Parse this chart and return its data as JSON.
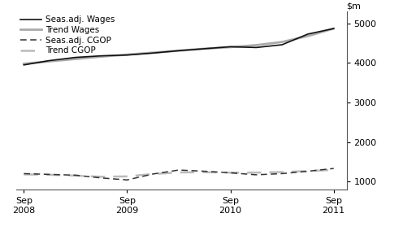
{
  "ylim": [
    800,
    5300
  ],
  "yticks": [
    1000,
    2000,
    3000,
    4000,
    5000
  ],
  "x_labels": [
    "Sep\n2008",
    "Sep\n2009",
    "Sep\n2010",
    "Sep\n2011"
  ],
  "x_positions": [
    0,
    4,
    8,
    12
  ],
  "seas_wages_x": [
    0,
    1,
    2,
    3,
    4,
    5,
    6,
    7,
    8,
    9,
    10,
    11,
    12
  ],
  "seas_wages_y": [
    3950,
    4060,
    4140,
    4180,
    4200,
    4250,
    4310,
    4360,
    4410,
    4390,
    4460,
    4730,
    4870
  ],
  "trend_wages_x": [
    0,
    1,
    2,
    3,
    4,
    5,
    6,
    7,
    8,
    9,
    10,
    11,
    12
  ],
  "trend_wages_y": [
    3980,
    4040,
    4100,
    4160,
    4210,
    4260,
    4310,
    4360,
    4400,
    4450,
    4530,
    4680,
    4870
  ],
  "seas_cgop_x": [
    0,
    1,
    2,
    3,
    4,
    5,
    6,
    7,
    8,
    9,
    10,
    11,
    12
  ],
  "seas_cgop_y": [
    1200,
    1180,
    1160,
    1090,
    1040,
    1190,
    1290,
    1260,
    1220,
    1170,
    1200,
    1260,
    1330
  ],
  "trend_cgop_x": [
    0,
    1,
    2,
    3,
    4,
    5,
    6,
    7,
    8,
    9,
    10,
    11,
    12
  ],
  "trend_cgop_y": [
    1180,
    1170,
    1150,
    1120,
    1130,
    1190,
    1230,
    1235,
    1225,
    1225,
    1240,
    1265,
    1295
  ],
  "seas_wages_color": "#111111",
  "trend_wages_color": "#aaaaaa",
  "seas_cgop_color": "#333333",
  "trend_cgop_color": "#bbbbbb",
  "bg_color": "#ffffff",
  "legend_labels": [
    "Seas.adj. Wages",
    "Trend Wages",
    "Seas.adj. CGOP",
    "Trend CGOP"
  ]
}
